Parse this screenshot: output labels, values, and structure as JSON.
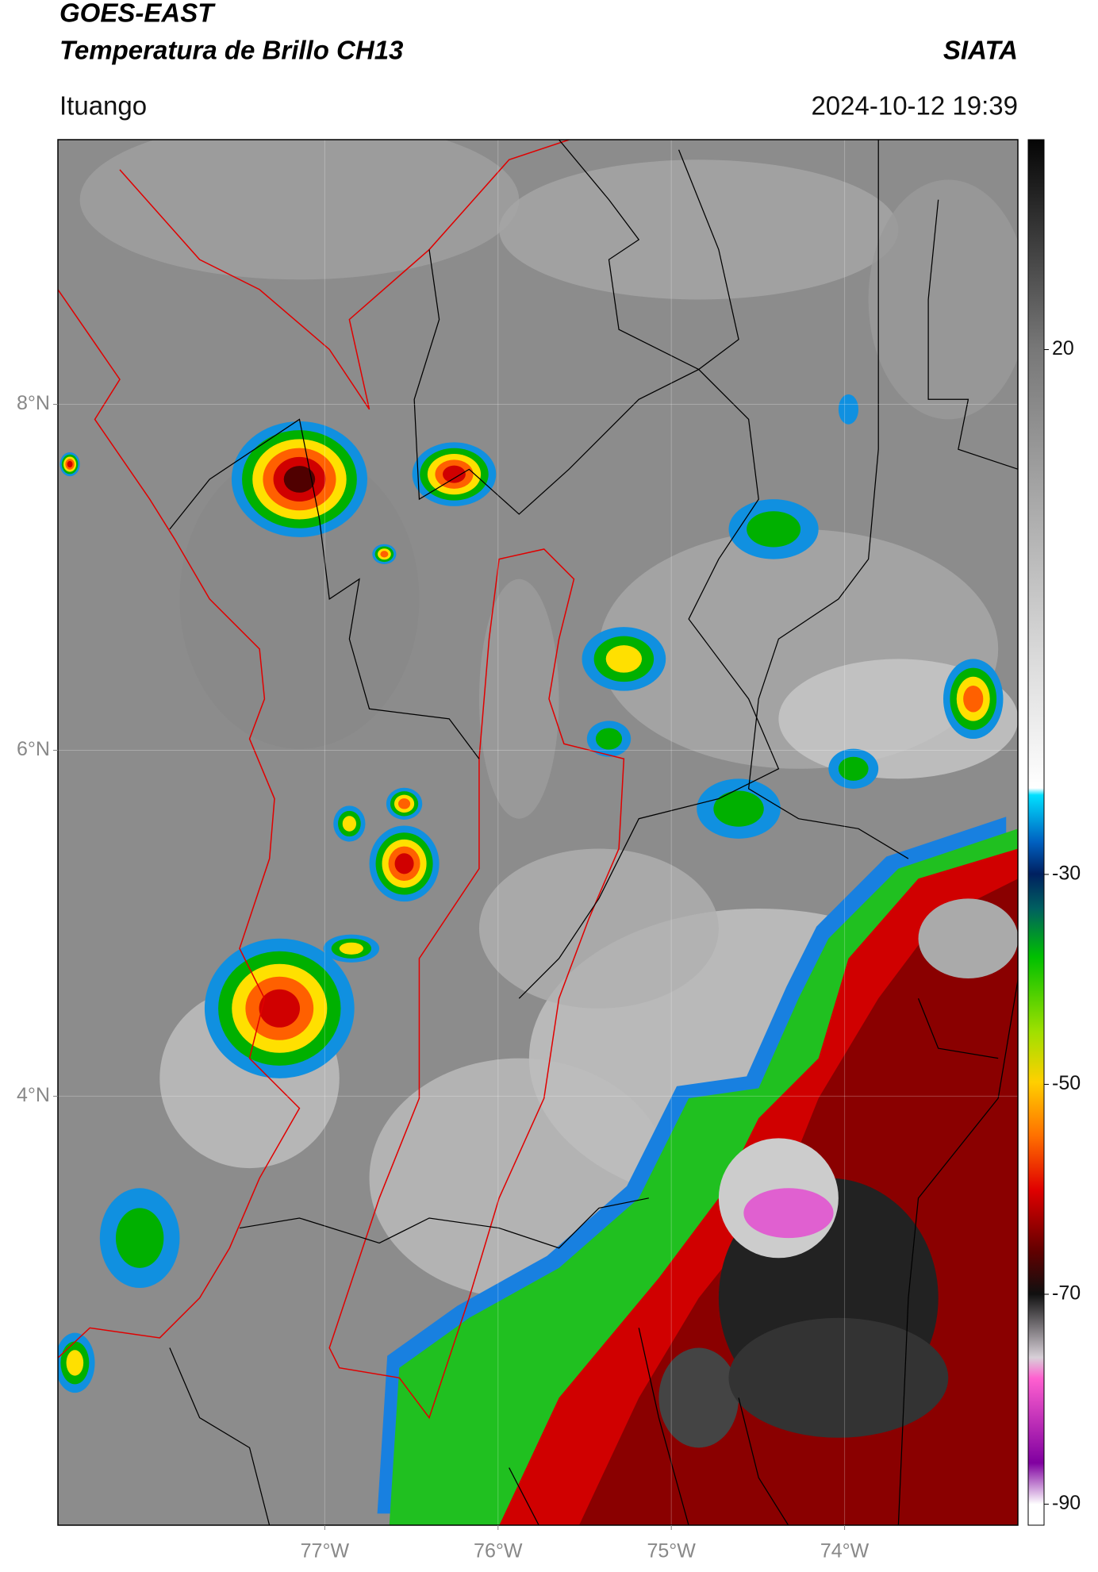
{
  "header": {
    "title": "GOES-EAST",
    "subtitle": "Temperatura de Brillo CH13",
    "source": "SIATA",
    "location": "Ituango",
    "timestamp": "2024-10-12 19:39"
  },
  "map": {
    "xlim": [
      -78.54,
      -73.0
    ],
    "ylim": [
      1.52,
      9.53
    ],
    "xticks": [
      {
        "value": -77,
        "label": "77°W"
      },
      {
        "value": -76,
        "label": "76°W"
      },
      {
        "value": -75,
        "label": "75°W"
      },
      {
        "value": -74,
        "label": "74°W"
      }
    ],
    "yticks": [
      {
        "value": 8,
        "label": "8°N"
      },
      {
        "value": 6,
        "label": "6°N"
      },
      {
        "value": 4,
        "label": "4°N"
      }
    ]
  },
  "colorbar": {
    "clim": [
      -92,
      40
    ],
    "ticks": [
      20,
      -30,
      -50,
      -70,
      -90
    ]
  }
}
